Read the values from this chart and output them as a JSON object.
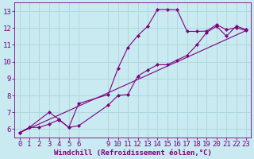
{
  "background_color": "#c8eaf0",
  "grid_color": "#b0d8e0",
  "line_color": "#800080",
  "xlabel": "Windchill (Refroidissement éolien,°C)",
  "xlabel_fontsize": 6.5,
  "tick_fontsize": 6.5,
  "xlim": [
    -0.5,
    23.5
  ],
  "ylim": [
    5.5,
    13.5
  ],
  "yticks": [
    6,
    7,
    8,
    9,
    10,
    11,
    12,
    13
  ],
  "xticks": [
    0,
    1,
    2,
    3,
    4,
    5,
    6,
    9,
    10,
    11,
    12,
    13,
    14,
    15,
    16,
    17,
    18,
    19,
    20,
    21,
    22,
    23
  ],
  "line1_x": [
    0,
    1,
    2,
    3,
    4,
    5,
    6,
    9,
    10,
    11,
    12,
    13,
    14,
    15,
    16,
    17,
    18,
    19,
    20,
    21,
    22,
    23
  ],
  "line1_y": [
    5.78,
    6.1,
    6.1,
    6.3,
    6.55,
    6.1,
    6.2,
    7.42,
    8.0,
    8.05,
    9.15,
    9.5,
    9.82,
    9.82,
    10.1,
    10.38,
    11.0,
    11.75,
    12.1,
    11.52,
    12.12,
    11.9
  ],
  "line2_x": [
    0,
    1,
    3,
    4,
    5,
    6,
    9,
    10,
    11,
    12,
    13,
    14,
    15,
    16,
    17,
    18,
    19,
    20,
    21,
    22,
    23
  ],
  "line2_y": [
    5.78,
    6.1,
    7.0,
    6.58,
    6.1,
    7.52,
    8.05,
    9.62,
    10.85,
    11.55,
    12.1,
    13.1,
    13.1,
    13.08,
    11.8,
    11.8,
    11.82,
    12.2,
    11.9,
    12.02,
    11.85
  ],
  "line3_x": [
    0,
    23
  ],
  "line3_y": [
    5.78,
    11.85
  ]
}
